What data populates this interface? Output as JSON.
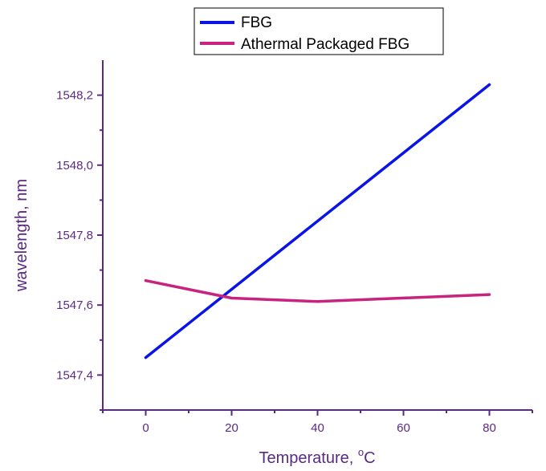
{
  "chart_data": {
    "type": "line",
    "xlabel": "Temperature, ",
    "xlabel_sup": "o",
    "xlabel_unit": "C",
    "ylabel": "wavelength, nm",
    "xlim": [
      -10,
      90
    ],
    "ylim": [
      1547.3,
      1548.3
    ],
    "x_ticks": [
      0,
      20,
      40,
      60,
      80
    ],
    "x_tick_labels": [
      "0",
      "20",
      "40",
      "60",
      "80"
    ],
    "y_ticks": [
      1547.4,
      1547.6,
      1547.8,
      1548.0,
      1548.2
    ],
    "y_tick_labels": [
      "1547,4",
      "1547,6",
      "1547,8",
      "1548,0",
      "1548,2"
    ],
    "legend_position": "top-center",
    "grid": false,
    "series": [
      {
        "name": "FBG",
        "color": "#0a14e6",
        "x": [
          0,
          80
        ],
        "y": [
          1547.45,
          1548.23
        ]
      },
      {
        "name": "Athermal Packaged FBG",
        "color": "#c8237e",
        "x": [
          0,
          20,
          40,
          80
        ],
        "y": [
          1547.67,
          1547.62,
          1547.61,
          1547.63
        ]
      }
    ]
  }
}
